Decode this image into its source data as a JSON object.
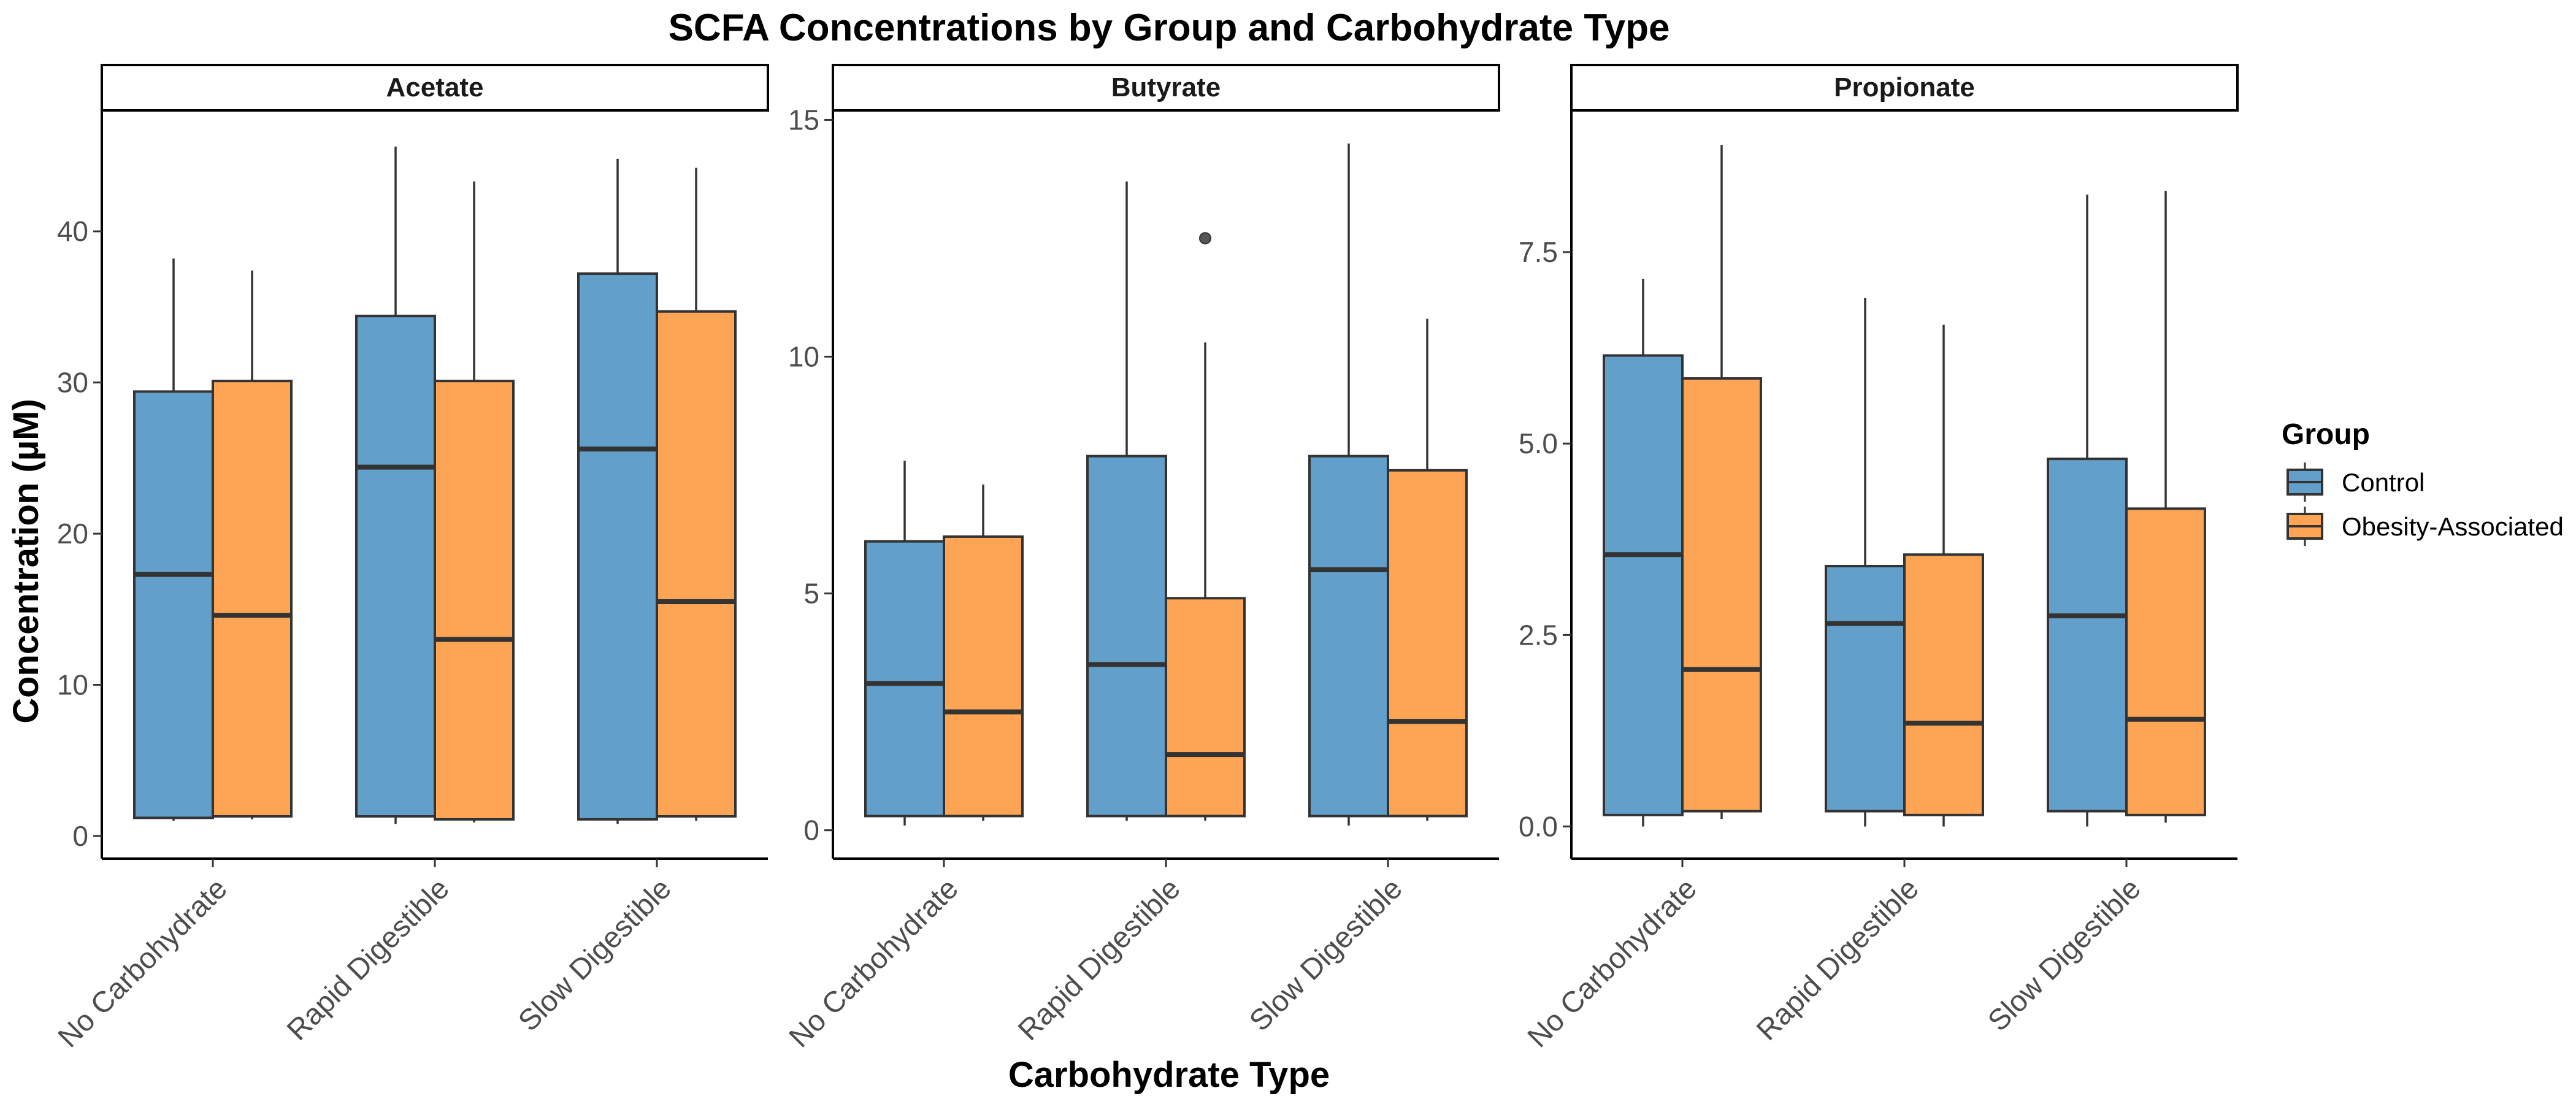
{
  "chart_data": {
    "type": "boxplot",
    "title": "SCFA Concentrations by Group and Carbohydrate Type",
    "xlabel": "Carbohydrate Type",
    "ylabel": "Concentration (µM)",
    "categories": [
      "No Carbohydrate",
      "Rapid Digestible",
      "Slow Digestible"
    ],
    "legend": {
      "title": "Group",
      "position": "right",
      "items": [
        {
          "name": "Control",
          "color": "#629fcb"
        },
        {
          "name": "Obesity-Associated",
          "color": "#fea555"
        }
      ]
    },
    "grid": false,
    "facets": [
      {
        "label": "Acetate",
        "ylim": [
          -1.5,
          48
        ],
        "yticks": [
          0,
          10,
          20,
          30,
          40
        ],
        "ytick_labels": [
          "0",
          "10",
          "20",
          "30",
          "40"
        ],
        "series": [
          {
            "name": "Control",
            "boxes": [
              {
                "min": 1.0,
                "q1": 1.2,
                "median": 17.3,
                "q3": 29.4,
                "max": 38.2,
                "outliers": []
              },
              {
                "min": 0.8,
                "q1": 1.3,
                "median": 24.4,
                "q3": 34.4,
                "max": 45.6,
                "outliers": []
              },
              {
                "min": 0.8,
                "q1": 1.1,
                "median": 25.6,
                "q3": 37.2,
                "max": 44.8,
                "outliers": []
              }
            ]
          },
          {
            "name": "Obesity-Associated",
            "boxes": [
              {
                "min": 1.1,
                "q1": 1.3,
                "median": 14.6,
                "q3": 30.1,
                "max": 37.4,
                "outliers": []
              },
              {
                "min": 0.9,
                "q1": 1.1,
                "median": 13.0,
                "q3": 30.1,
                "max": 43.3,
                "outliers": []
              },
              {
                "min": 1.0,
                "q1": 1.3,
                "median": 15.5,
                "q3": 34.7,
                "max": 44.2,
                "outliers": []
              }
            ]
          }
        ]
      },
      {
        "label": "Butyrate",
        "ylim": [
          -0.6,
          15.2
        ],
        "yticks": [
          0,
          5,
          10,
          15
        ],
        "ytick_labels": [
          "0",
          "5",
          "10",
          "15"
        ],
        "series": [
          {
            "name": "Control",
            "boxes": [
              {
                "min": 0.1,
                "q1": 0.3,
                "median": 3.1,
                "q3": 6.1,
                "max": 7.8,
                "outliers": []
              },
              {
                "min": 0.2,
                "q1": 0.3,
                "median": 3.5,
                "q3": 7.9,
                "max": 13.7,
                "outliers": []
              },
              {
                "min": 0.1,
                "q1": 0.3,
                "median": 5.5,
                "q3": 7.9,
                "max": 14.5,
                "outliers": []
              }
            ]
          },
          {
            "name": "Obesity-Associated",
            "boxes": [
              {
                "min": 0.2,
                "q1": 0.3,
                "median": 2.5,
                "q3": 6.2,
                "max": 7.3,
                "outliers": []
              },
              {
                "min": 0.2,
                "q1": 0.3,
                "median": 1.6,
                "q3": 4.9,
                "max": 10.3,
                "outliers": [
                  12.5
                ]
              },
              {
                "min": 0.2,
                "q1": 0.3,
                "median": 2.3,
                "q3": 7.6,
                "max": 10.8,
                "outliers": []
              }
            ]
          }
        ]
      },
      {
        "label": "Propionate",
        "ylim": [
          -0.42,
          9.35
        ],
        "yticks": [
          0,
          2.5,
          5,
          7.5
        ],
        "ytick_labels": [
          "0.0",
          "2.5",
          "5.0",
          "7.5"
        ],
        "series": [
          {
            "name": "Control",
            "boxes": [
              {
                "min": 0.0,
                "q1": 0.15,
                "median": 3.55,
                "q3": 6.15,
                "max": 7.15,
                "outliers": []
              },
              {
                "min": 0.0,
                "q1": 0.2,
                "median": 2.65,
                "q3": 3.4,
                "max": 6.9,
                "outliers": []
              },
              {
                "min": 0.0,
                "q1": 0.2,
                "median": 2.75,
                "q3": 4.8,
                "max": 8.25,
                "outliers": []
              }
            ]
          },
          {
            "name": "Obesity-Associated",
            "boxes": [
              {
                "min": 0.1,
                "q1": 0.2,
                "median": 2.05,
                "q3": 5.85,
                "max": 8.9,
                "outliers": []
              },
              {
                "min": 0.0,
                "q1": 0.15,
                "median": 1.35,
                "q3": 3.55,
                "max": 6.55,
                "outliers": []
              },
              {
                "min": 0.05,
                "q1": 0.15,
                "median": 1.4,
                "q3": 4.15,
                "max": 8.3,
                "outliers": []
              }
            ]
          }
        ]
      }
    ]
  }
}
